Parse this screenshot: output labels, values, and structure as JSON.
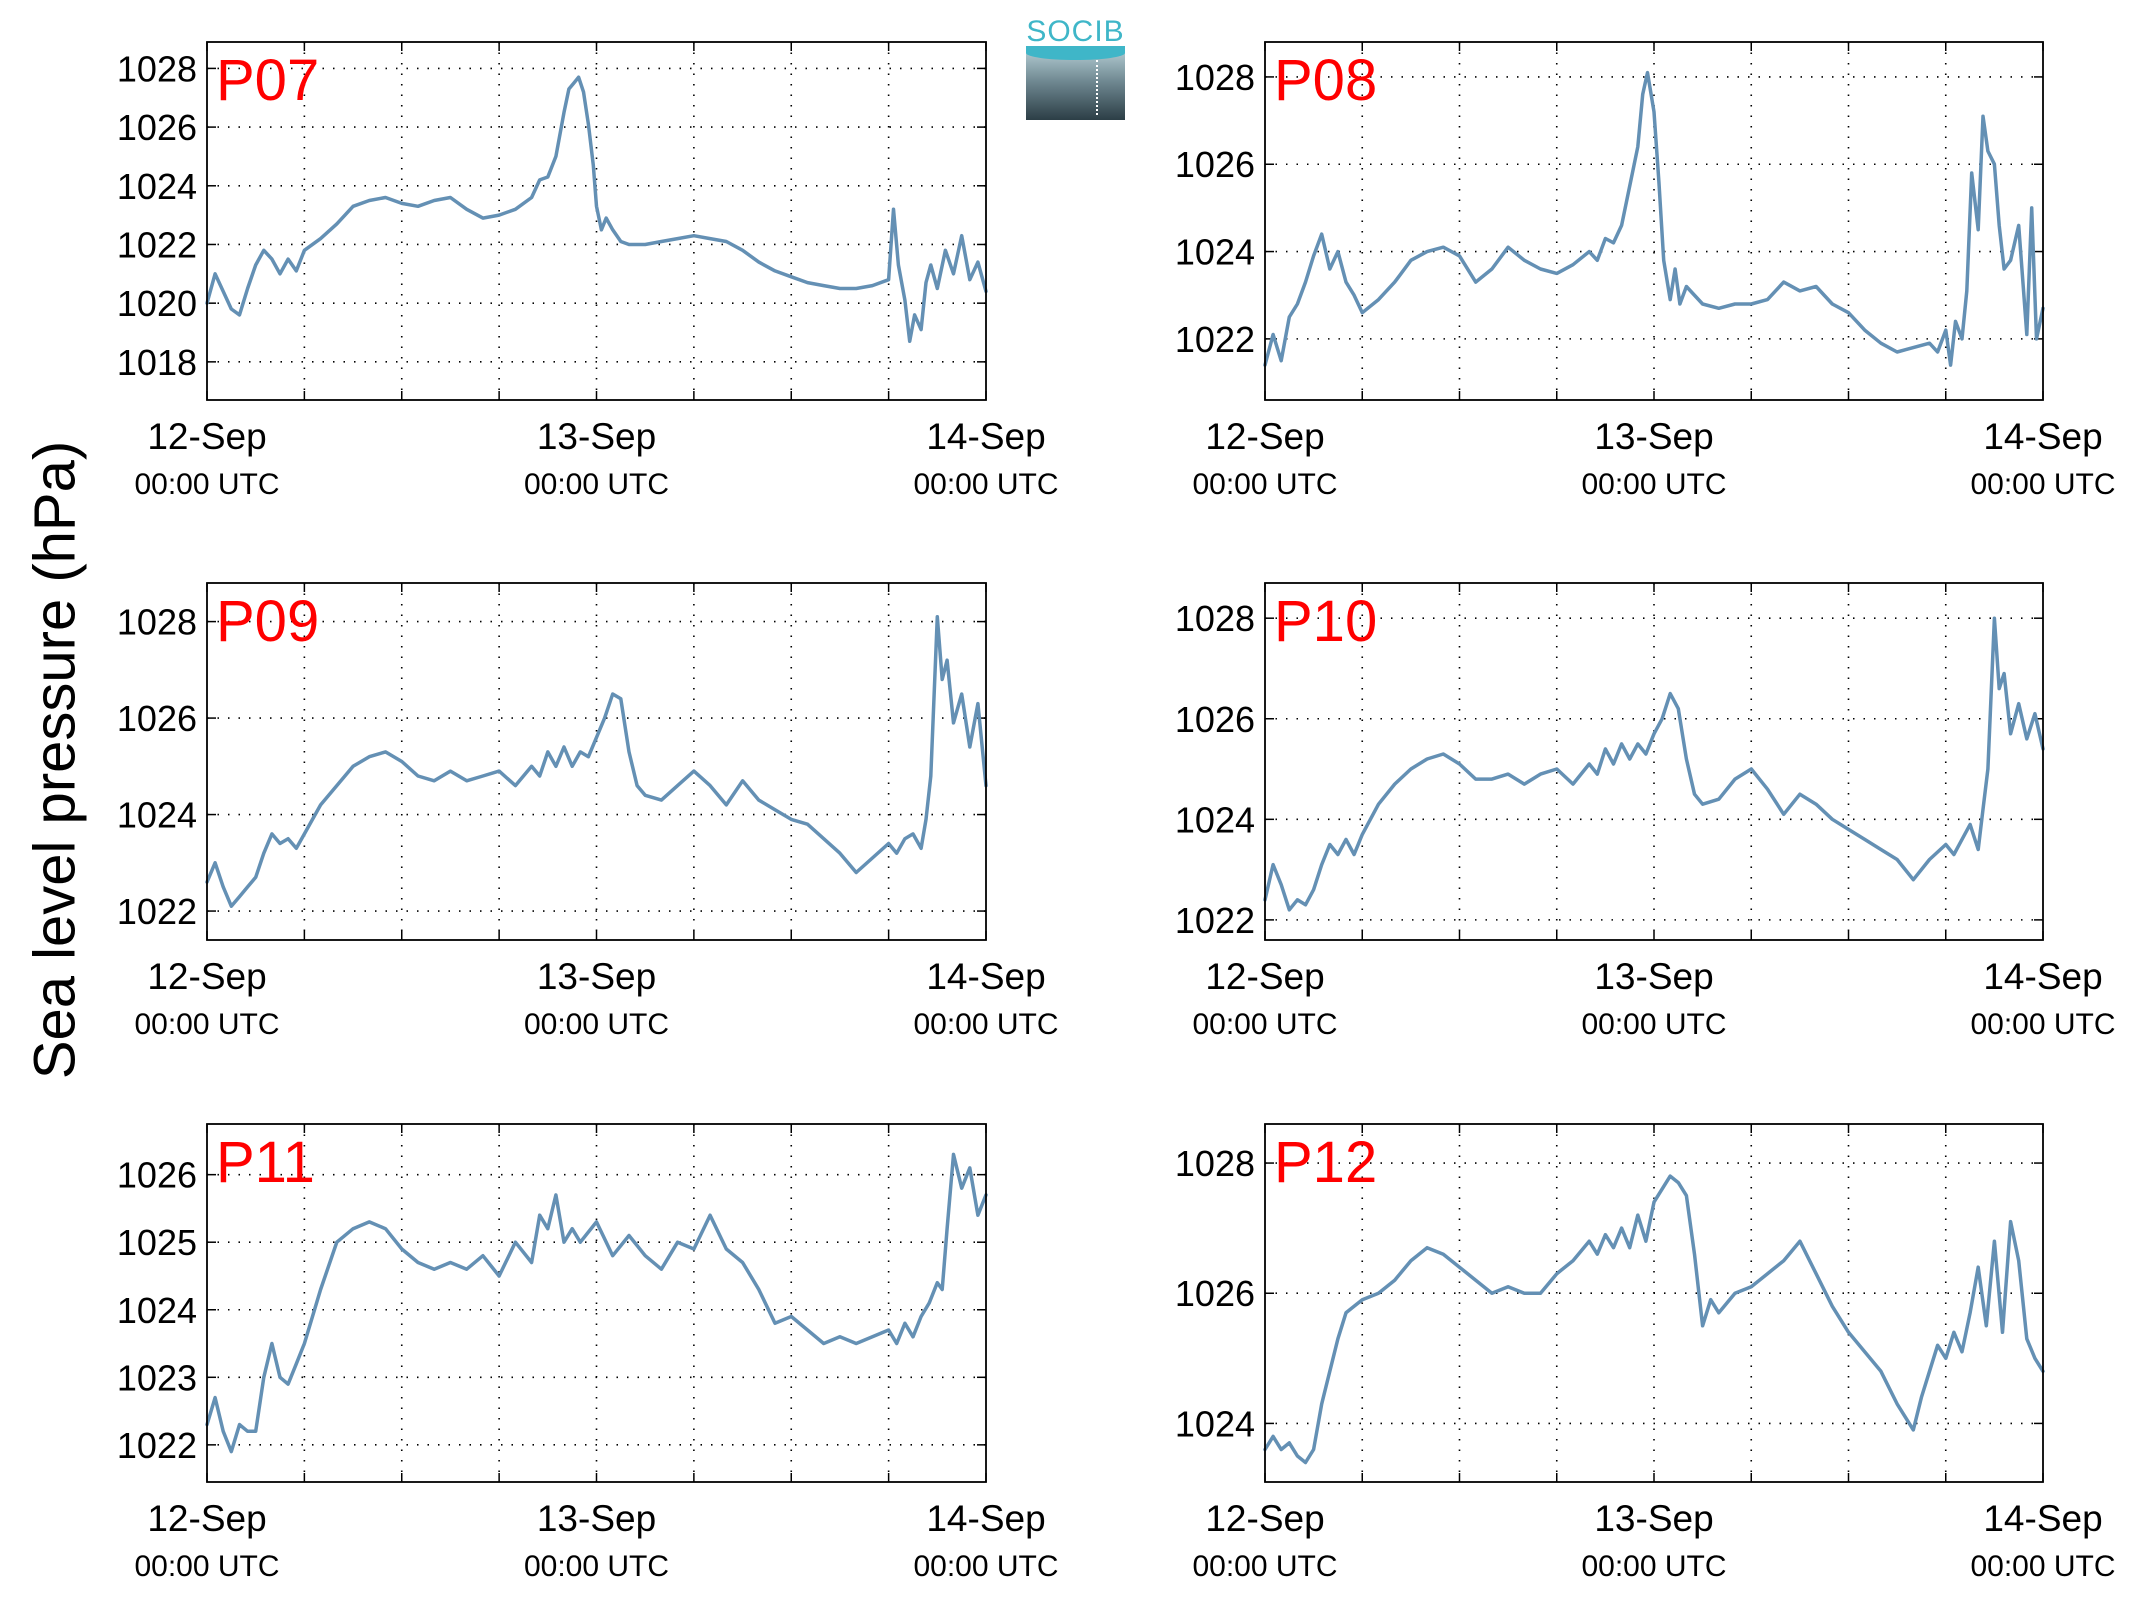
{
  "figure": {
    "ylabel": "Sea level pressure (hPa)",
    "logo_text": "SOCIB",
    "line_color": "#6490b4",
    "title_color": "#ff0000"
  },
  "chart_data": [
    {
      "type": "line",
      "title": "P07",
      "x_ticks": [
        {
          "line1": "12-Sep",
          "line2": "00:00 UTC",
          "hour": 0
        },
        {
          "line1": "13-Sep",
          "line2": "00:00 UTC",
          "hour": 24
        },
        {
          "line1": "14-Sep",
          "line2": "00:00 UTC",
          "hour": 48
        }
      ],
      "xlim": [
        0,
        48
      ],
      "ylim": [
        1016.7,
        1028.9
      ],
      "yticks": [
        1018,
        1020,
        1022,
        1024,
        1026,
        1028
      ],
      "grid": true,
      "x": [
        0,
        0.5,
        1,
        1.5,
        2,
        2.5,
        3,
        3.5,
        4,
        4.5,
        5,
        5.5,
        6,
        7,
        8,
        9,
        10,
        11,
        12,
        13,
        14,
        15,
        16,
        17,
        18,
        19,
        20,
        20.5,
        21,
        21.5,
        22,
        22.3,
        22.6,
        22.9,
        23.2,
        23.5,
        23.8,
        24,
        24.3,
        24.6,
        25,
        25.5,
        26,
        27,
        28,
        29,
        30,
        31,
        32,
        33,
        34,
        35,
        36,
        37,
        38,
        39,
        40,
        41,
        42,
        42.3,
        42.6,
        43,
        43.3,
        43.6,
        44,
        44.3,
        44.6,
        45,
        45.5,
        46,
        46.5,
        47,
        47.5,
        48
      ],
      "series": [
        {
          "values": [
            1020.0,
            1021.0,
            1020.4,
            1019.8,
            1019.6,
            1020.5,
            1021.3,
            1021.8,
            1021.5,
            1021.0,
            1021.5,
            1021.1,
            1021.8,
            1022.2,
            1022.7,
            1023.3,
            1023.5,
            1023.6,
            1023.4,
            1023.3,
            1023.5,
            1023.6,
            1023.2,
            1022.9,
            1023.0,
            1023.2,
            1023.6,
            1024.2,
            1024.3,
            1025.0,
            1026.5,
            1027.3,
            1027.5,
            1027.7,
            1027.2,
            1026.1,
            1024.7,
            1023.3,
            1022.5,
            1022.9,
            1022.5,
            1022.1,
            1022.0,
            1022.0,
            1022.1,
            1022.2,
            1022.3,
            1022.2,
            1022.1,
            1021.8,
            1021.4,
            1021.1,
            1020.9,
            1020.7,
            1020.6,
            1020.5,
            1020.5,
            1020.6,
            1020.8,
            1023.2,
            1021.3,
            1020.1,
            1018.7,
            1019.6,
            1019.1,
            1020.7,
            1021.3,
            1020.5,
            1021.8,
            1021.0,
            1022.3,
            1020.8,
            1021.4,
            1020.4
          ]
        }
      ]
    },
    {
      "type": "line",
      "title": "P08",
      "x_ticks": [
        {
          "line1": "12-Sep",
          "line2": "00:00 UTC",
          "hour": 0
        },
        {
          "line1": "13-Sep",
          "line2": "00:00 UTC",
          "hour": 24
        },
        {
          "line1": "14-Sep",
          "line2": "00:00 UTC",
          "hour": 48
        }
      ],
      "xlim": [
        0,
        48
      ],
      "ylim": [
        1020.6,
        1028.8
      ],
      "yticks": [
        1022,
        1024,
        1026,
        1028
      ],
      "grid": true,
      "x": [
        0,
        0.5,
        1,
        1.5,
        2,
        2.5,
        3,
        3.5,
        4,
        4.5,
        5,
        5.5,
        6,
        7,
        8,
        9,
        10,
        11,
        12,
        13,
        14,
        15,
        16,
        17,
        18,
        19,
        20,
        20.5,
        21,
        21.5,
        22,
        22.5,
        23,
        23.3,
        23.6,
        24,
        24.3,
        24.6,
        25,
        25.3,
        25.6,
        26,
        27,
        28,
        29,
        30,
        31,
        32,
        33,
        34,
        35,
        36,
        37,
        38,
        39,
        40,
        41,
        41.5,
        42,
        42.3,
        42.6,
        43,
        43.3,
        43.6,
        44,
        44.3,
        44.6,
        45,
        45.3,
        45.6,
        46,
        46.5,
        47,
        47.3,
        47.6,
        48
      ],
      "series": [
        {
          "values": [
            1021.4,
            1022.1,
            1021.5,
            1022.5,
            1022.8,
            1023.3,
            1023.9,
            1024.4,
            1023.6,
            1024.0,
            1023.3,
            1023.0,
            1022.6,
            1022.9,
            1023.3,
            1023.8,
            1024.0,
            1024.1,
            1023.9,
            1023.3,
            1023.6,
            1024.1,
            1023.8,
            1023.6,
            1023.5,
            1023.7,
            1024.0,
            1023.8,
            1024.3,
            1024.2,
            1024.6,
            1025.5,
            1026.4,
            1027.6,
            1028.1,
            1027.2,
            1025.6,
            1023.8,
            1022.9,
            1023.6,
            1022.8,
            1023.2,
            1022.8,
            1022.7,
            1022.8,
            1022.8,
            1022.9,
            1023.3,
            1023.1,
            1023.2,
            1022.8,
            1022.6,
            1022.2,
            1021.9,
            1021.7,
            1021.8,
            1021.9,
            1021.7,
            1022.2,
            1021.4,
            1022.4,
            1022.0,
            1023.1,
            1025.8,
            1024.5,
            1027.1,
            1026.3,
            1026.0,
            1024.6,
            1023.6,
            1023.8,
            1024.6,
            1022.1,
            1025.0,
            1022.0,
            1022.7
          ]
        }
      ]
    },
    {
      "type": "line",
      "title": "P09",
      "x_ticks": [
        {
          "line1": "12-Sep",
          "line2": "00:00 UTC",
          "hour": 0
        },
        {
          "line1": "13-Sep",
          "line2": "00:00 UTC",
          "hour": 24
        },
        {
          "line1": "14-Sep",
          "line2": "00:00 UTC",
          "hour": 48
        }
      ],
      "xlim": [
        0,
        48
      ],
      "ylim": [
        1021.4,
        1028.8
      ],
      "yticks": [
        1022,
        1024,
        1026,
        1028
      ],
      "grid": true,
      "x": [
        0,
        0.5,
        1,
        1.5,
        2,
        2.5,
        3,
        3.5,
        4,
        4.5,
        5,
        5.5,
        6,
        7,
        8,
        9,
        10,
        11,
        12,
        13,
        14,
        15,
        16,
        17,
        18,
        19,
        20,
        20.5,
        21,
        21.5,
        22,
        22.5,
        23,
        23.5,
        24,
        24.5,
        25,
        25.5,
        26,
        26.5,
        27,
        28,
        29,
        30,
        31,
        32,
        33,
        34,
        35,
        36,
        37,
        38,
        39,
        40,
        41,
        42,
        42.5,
        43,
        43.5,
        44,
        44.3,
        44.6,
        45,
        45.3,
        45.6,
        46,
        46.5,
        47,
        47.5,
        48
      ],
      "series": [
        {
          "values": [
            1022.6,
            1023.0,
            1022.5,
            1022.1,
            1022.3,
            1022.5,
            1022.7,
            1023.2,
            1023.6,
            1023.4,
            1023.5,
            1023.3,
            1023.6,
            1024.2,
            1024.6,
            1025.0,
            1025.2,
            1025.3,
            1025.1,
            1024.8,
            1024.7,
            1024.9,
            1024.7,
            1024.8,
            1024.9,
            1024.6,
            1025.0,
            1024.8,
            1025.3,
            1025.0,
            1025.4,
            1025.0,
            1025.3,
            1025.2,
            1025.6,
            1026.0,
            1026.5,
            1026.4,
            1025.3,
            1024.6,
            1024.4,
            1024.3,
            1024.6,
            1024.9,
            1024.6,
            1024.2,
            1024.7,
            1024.3,
            1024.1,
            1023.9,
            1023.8,
            1023.5,
            1023.2,
            1022.8,
            1023.1,
            1023.4,
            1023.2,
            1023.5,
            1023.6,
            1023.3,
            1023.9,
            1024.8,
            1028.1,
            1026.8,
            1027.2,
            1025.9,
            1026.5,
            1025.4,
            1026.3,
            1024.6
          ]
        }
      ]
    },
    {
      "type": "line",
      "title": "P10",
      "x_ticks": [
        {
          "line1": "12-Sep",
          "line2": "00:00 UTC",
          "hour": 0
        },
        {
          "line1": "13-Sep",
          "line2": "00:00 UTC",
          "hour": 24
        },
        {
          "line1": "14-Sep",
          "line2": "00:00 UTC",
          "hour": 48
        }
      ],
      "xlim": [
        0,
        48
      ],
      "ylim": [
        1021.6,
        1028.7
      ],
      "yticks": [
        1022,
        1024,
        1026,
        1028
      ],
      "grid": true,
      "x": [
        0,
        0.5,
        1,
        1.5,
        2,
        2.5,
        3,
        3.5,
        4,
        4.5,
        5,
        5.5,
        6,
        7,
        8,
        9,
        10,
        11,
        12,
        13,
        14,
        15,
        16,
        17,
        18,
        19,
        20,
        20.5,
        21,
        21.5,
        22,
        22.5,
        23,
        23.5,
        24,
        24.5,
        25,
        25.5,
        26,
        26.5,
        27,
        28,
        29,
        30,
        31,
        32,
        33,
        34,
        35,
        36,
        37,
        38,
        39,
        40,
        41,
        42,
        42.5,
        43,
        43.5,
        44,
        44.3,
        44.6,
        45,
        45.3,
        45.6,
        46,
        46.5,
        47,
        47.5,
        48
      ],
      "series": [
        {
          "values": [
            1022.4,
            1023.1,
            1022.7,
            1022.2,
            1022.4,
            1022.3,
            1022.6,
            1023.1,
            1023.5,
            1023.3,
            1023.6,
            1023.3,
            1023.7,
            1024.3,
            1024.7,
            1025.0,
            1025.2,
            1025.3,
            1025.1,
            1024.8,
            1024.8,
            1024.9,
            1024.7,
            1024.9,
            1025.0,
            1024.7,
            1025.1,
            1024.9,
            1025.4,
            1025.1,
            1025.5,
            1025.2,
            1025.5,
            1025.3,
            1025.7,
            1026.0,
            1026.5,
            1026.2,
            1025.2,
            1024.5,
            1024.3,
            1024.4,
            1024.8,
            1025.0,
            1024.6,
            1024.1,
            1024.5,
            1024.3,
            1024.0,
            1023.8,
            1023.6,
            1023.4,
            1023.2,
            1022.8,
            1023.2,
            1023.5,
            1023.3,
            1023.6,
            1023.9,
            1023.4,
            1024.2,
            1025.0,
            1028.0,
            1026.6,
            1026.9,
            1025.7,
            1026.3,
            1025.6,
            1026.1,
            1025.4
          ]
        }
      ]
    },
    {
      "type": "line",
      "title": "P11",
      "x_ticks": [
        {
          "line1": "12-Sep",
          "line2": "00:00 UTC",
          "hour": 0
        },
        {
          "line1": "13-Sep",
          "line2": "00:00 UTC",
          "hour": 24
        },
        {
          "line1": "14-Sep",
          "line2": "00:00 UTC",
          "hour": 48
        }
      ],
      "xlim": [
        0,
        48
      ],
      "ylim": [
        1021.45,
        1026.75
      ],
      "yticks": [
        1022,
        1023,
        1024,
        1025,
        1026
      ],
      "grid": true,
      "x": [
        0,
        0.5,
        1,
        1.5,
        2,
        2.5,
        3,
        3.5,
        4,
        4.5,
        5,
        5.5,
        6,
        6.5,
        7,
        8,
        9,
        10,
        11,
        12,
        13,
        14,
        15,
        16,
        17,
        18,
        19,
        20,
        20.5,
        21,
        21.5,
        22,
        22.5,
        23,
        24,
        25,
        26,
        27,
        28,
        29,
        30,
        31,
        32,
        33,
        34,
        35,
        36,
        37,
        38,
        39,
        40,
        41,
        42,
        42.5,
        43,
        43.5,
        44,
        44.5,
        45,
        45.3,
        45.6,
        46,
        46.5,
        47,
        47.5,
        48
      ],
      "series": [
        {
          "values": [
            1022.3,
            1022.7,
            1022.2,
            1021.9,
            1022.3,
            1022.2,
            1022.2,
            1023.0,
            1023.5,
            1023.0,
            1022.9,
            1023.2,
            1023.5,
            1023.9,
            1024.3,
            1025.0,
            1025.2,
            1025.3,
            1025.2,
            1024.9,
            1024.7,
            1024.6,
            1024.7,
            1024.6,
            1024.8,
            1024.5,
            1025.0,
            1024.7,
            1025.4,
            1025.2,
            1025.7,
            1025.0,
            1025.2,
            1025.0,
            1025.3,
            1024.8,
            1025.1,
            1024.8,
            1024.6,
            1025.0,
            1024.9,
            1025.4,
            1024.9,
            1024.7,
            1024.3,
            1023.8,
            1023.9,
            1023.7,
            1023.5,
            1023.6,
            1023.5,
            1023.6,
            1023.7,
            1023.5,
            1023.8,
            1023.6,
            1023.9,
            1024.1,
            1024.4,
            1024.3,
            1025.2,
            1026.3,
            1025.8,
            1026.1,
            1025.4,
            1025.7
          ]
        }
      ]
    },
    {
      "type": "line",
      "title": "P12",
      "x_ticks": [
        {
          "line1": "12-Sep",
          "line2": "00:00 UTC",
          "hour": 0
        },
        {
          "line1": "13-Sep",
          "line2": "00:00 UTC",
          "hour": 24
        },
        {
          "line1": "14-Sep",
          "line2": "00:00 UTC",
          "hour": 48
        }
      ],
      "xlim": [
        0,
        48
      ],
      "ylim": [
        1023.1,
        1028.6
      ],
      "yticks": [
        1024,
        1026,
        1028
      ],
      "grid": true,
      "x": [
        0,
        0.5,
        1,
        1.5,
        2,
        2.5,
        3,
        3.5,
        4,
        4.5,
        5,
        5.5,
        6,
        7,
        8,
        9,
        10,
        11,
        12,
        13,
        14,
        15,
        16,
        17,
        18,
        19,
        20,
        20.5,
        21,
        21.5,
        22,
        22.5,
        23,
        23.5,
        24,
        24.5,
        25,
        25.5,
        26,
        26.5,
        27,
        27.5,
        28,
        29,
        30,
        31,
        32,
        33,
        34,
        35,
        36,
        37,
        38,
        39,
        40,
        40.5,
        41,
        41.5,
        42,
        42.5,
        43,
        43.5,
        44,
        44.5,
        45,
        45.5,
        46,
        46.5,
        47,
        47.5,
        48
      ],
      "series": [
        {
          "values": [
            1023.6,
            1023.8,
            1023.6,
            1023.7,
            1023.5,
            1023.4,
            1023.6,
            1024.3,
            1024.8,
            1025.3,
            1025.7,
            1025.8,
            1025.9,
            1026.0,
            1026.2,
            1026.5,
            1026.7,
            1026.6,
            1026.4,
            1026.2,
            1026.0,
            1026.1,
            1026.0,
            1026.0,
            1026.3,
            1026.5,
            1026.8,
            1026.6,
            1026.9,
            1026.7,
            1027.0,
            1026.7,
            1027.2,
            1026.8,
            1027.4,
            1027.6,
            1027.8,
            1027.7,
            1027.5,
            1026.6,
            1025.5,
            1025.9,
            1025.7,
            1026.0,
            1026.1,
            1026.3,
            1026.5,
            1026.8,
            1026.3,
            1025.8,
            1025.4,
            1025.1,
            1024.8,
            1024.3,
            1023.9,
            1024.4,
            1024.8,
            1025.2,
            1025.0,
            1025.4,
            1025.1,
            1025.7,
            1026.4,
            1025.5,
            1026.8,
            1025.4,
            1027.1,
            1026.5,
            1025.3,
            1025.0,
            1024.8
          ]
        }
      ]
    }
  ]
}
